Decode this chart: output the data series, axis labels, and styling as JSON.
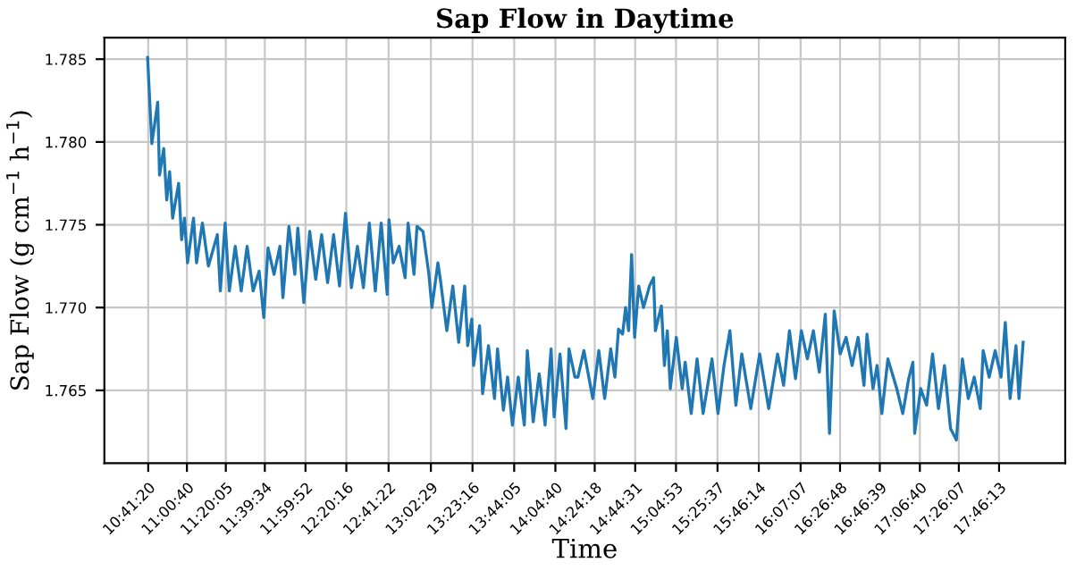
{
  "chart_data": {
    "type": "line",
    "title": "Sap Flow in Daytime",
    "xlabel": "Time",
    "ylabel": "Sap Flow (g cm$^{−1}$ h$^{−1}$)",
    "series": [
      {
        "color": "#1f77b4",
        "x": [
          10.684,
          10.704,
          10.719,
          10.768,
          10.783,
          10.818,
          10.843,
          10.867,
          10.892,
          10.942,
          10.967,
          10.991,
          11.016,
          11.066,
          11.091,
          11.14,
          11.19,
          11.264,
          11.289,
          11.329,
          11.364,
          11.413,
          11.463,
          11.512,
          11.562,
          11.612,
          11.651,
          11.686,
          11.736,
          11.785,
          11.81,
          11.86,
          11.909,
          11.934,
          11.984,
          12.033,
          12.083,
          12.132,
          12.182,
          12.232,
          12.281,
          12.331,
          12.38,
          12.43,
          12.48,
          12.529,
          12.579,
          12.628,
          12.678,
          12.693,
          12.728,
          12.777,
          12.827,
          12.852,
          12.901,
          12.926,
          12.976,
          13.025,
          13.05,
          13.1,
          13.124,
          13.174,
          13.224,
          13.273,
          13.323,
          13.348,
          13.382,
          13.397,
          13.447,
          13.472,
          13.521,
          13.571,
          13.596,
          13.645,
          13.68,
          13.72,
          13.769,
          13.819,
          13.844,
          13.893,
          13.943,
          13.992,
          14.042,
          14.067,
          14.116,
          14.166,
          14.191,
          14.24,
          14.265,
          14.315,
          14.389,
          14.439,
          14.488,
          14.538,
          14.573,
          14.603,
          14.637,
          14.662,
          14.687,
          14.712,
          14.737,
          14.771,
          14.811,
          14.861,
          14.895,
          14.91,
          14.96,
          14.985,
          15.009,
          15.034,
          15.084,
          15.133,
          15.158,
          15.208,
          15.257,
          15.307,
          15.381,
          15.431,
          15.481,
          15.53,
          15.58,
          15.629,
          15.704,
          15.778,
          15.853,
          15.927,
          15.977,
          16.026,
          16.076,
          16.125,
          16.175,
          16.225,
          16.274,
          16.324,
          16.359,
          16.398,
          16.448,
          16.497,
          16.547,
          16.597,
          16.646,
          16.671,
          16.721,
          16.755,
          16.795,
          16.845,
          16.919,
          16.969,
          17.018,
          17.053,
          17.068,
          17.118,
          17.167,
          17.217,
          17.266,
          17.316,
          17.366,
          17.415,
          17.465,
          17.514,
          17.564,
          17.614,
          17.638,
          17.688,
          17.738,
          17.787,
          17.822,
          17.862,
          17.911,
          17.936,
          17.971
        ],
        "values": [
          1.7851,
          1.7821,
          1.7799,
          1.7824,
          1.778,
          1.7796,
          1.7765,
          1.7782,
          1.7754,
          1.7775,
          1.7741,
          1.7754,
          1.7727,
          1.7754,
          1.7727,
          1.7751,
          1.7725,
          1.7744,
          1.771,
          1.7751,
          1.771,
          1.7737,
          1.771,
          1.7737,
          1.771,
          1.7722,
          1.7694,
          1.7736,
          1.772,
          1.7737,
          1.7706,
          1.7749,
          1.772,
          1.7748,
          1.7703,
          1.7746,
          1.7717,
          1.7744,
          1.7715,
          1.7744,
          1.7713,
          1.7757,
          1.7712,
          1.7737,
          1.7712,
          1.7751,
          1.771,
          1.7751,
          1.7708,
          1.7753,
          1.7727,
          1.7737,
          1.7718,
          1.7751,
          1.772,
          1.7749,
          1.7746,
          1.772,
          1.77,
          1.7727,
          1.7715,
          1.7686,
          1.7713,
          1.7679,
          1.7713,
          1.7677,
          1.7693,
          1.7665,
          1.7689,
          1.7648,
          1.7677,
          1.7645,
          1.7675,
          1.7638,
          1.7658,
          1.7629,
          1.7658,
          1.7629,
          1.7674,
          1.7631,
          1.766,
          1.7629,
          1.7675,
          1.7634,
          1.7672,
          1.7627,
          1.7675,
          1.7658,
          1.7658,
          1.7674,
          1.7645,
          1.7674,
          1.7645,
          1.7675,
          1.7658,
          1.7687,
          1.7684,
          1.77,
          1.7686,
          1.7732,
          1.7682,
          1.7713,
          1.77,
          1.7713,
          1.7718,
          1.7686,
          1.7701,
          1.7665,
          1.7686,
          1.7651,
          1.7682,
          1.7651,
          1.7667,
          1.7636,
          1.7669,
          1.7636,
          1.7669,
          1.7636,
          1.7665,
          1.7686,
          1.7641,
          1.7672,
          1.7639,
          1.7672,
          1.7639,
          1.7672,
          1.7653,
          1.7686,
          1.7657,
          1.7686,
          1.7669,
          1.7686,
          1.7661,
          1.7696,
          1.7624,
          1.7698,
          1.7672,
          1.7682,
          1.7665,
          1.7682,
          1.7653,
          1.7684,
          1.7651,
          1.7665,
          1.7636,
          1.7669,
          1.7651,
          1.7636,
          1.7657,
          1.7667,
          1.7624,
          1.7651,
          1.7641,
          1.7672,
          1.7639,
          1.7665,
          1.7627,
          1.762,
          1.7669,
          1.7645,
          1.7658,
          1.7639,
          1.7674,
          1.7658,
          1.7674,
          1.7658,
          1.7691,
          1.7645,
          1.7677,
          1.7645,
          1.7679
        ]
      }
    ],
    "xlim": [
      10.324,
      18.321
    ],
    "ylim": [
      1.7606,
      1.7863
    ],
    "xticks": [
      {
        "value": 10.6889,
        "label": "10:41:20"
      },
      {
        "value": 11.0111,
        "label": "11:00:40"
      },
      {
        "value": 11.3347,
        "label": "11:20:05"
      },
      {
        "value": 11.6594,
        "label": "11:39:34"
      },
      {
        "value": 11.9978,
        "label": "11:59:52"
      },
      {
        "value": 12.3378,
        "label": "12:20:16"
      },
      {
        "value": 12.6894,
        "label": "12:41:22"
      },
      {
        "value": 13.0414,
        "label": "13:02:29"
      },
      {
        "value": 13.3878,
        "label": "13:23:16"
      },
      {
        "value": 13.7347,
        "label": "13:44:05"
      },
      {
        "value": 14.0778,
        "label": "14:04:40"
      },
      {
        "value": 14.405,
        "label": "14:24:18"
      },
      {
        "value": 14.7419,
        "label": "14:44:31"
      },
      {
        "value": 15.0814,
        "label": "15:04:53"
      },
      {
        "value": 15.4269,
        "label": "15:25:37"
      },
      {
        "value": 15.7706,
        "label": "15:46:14"
      },
      {
        "value": 16.1186,
        "label": "16:07:07"
      },
      {
        "value": 16.4467,
        "label": "16:26:48"
      },
      {
        "value": 16.7775,
        "label": "16:46:39"
      },
      {
        "value": 17.1111,
        "label": "17:06:40"
      },
      {
        "value": 17.4353,
        "label": "17:26:07"
      },
      {
        "value": 17.7703,
        "label": "17:46:13"
      }
    ],
    "yticks": [
      1.765,
      {
        "value": 1.77,
        "label": "1.770"
      },
      1.775,
      {
        "value": 1.78,
        "label": "1.780"
      },
      1.785
    ],
    "grid": true,
    "line_style": "solid"
  }
}
